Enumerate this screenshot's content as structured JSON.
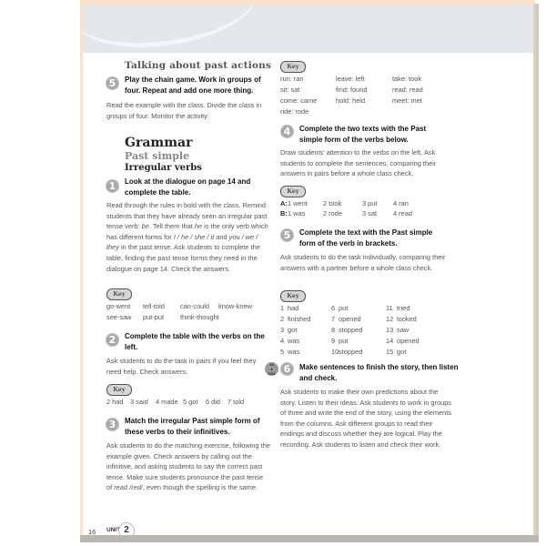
{
  "left": {
    "section_heading": "Talking about past actions",
    "ex5": {
      "number": "5",
      "task": "Play the chain game. Work in groups of four. Repeat and add one more thing.",
      "notes": "Read the example with the class. Divide the class in groups of four. Monitor the activity."
    },
    "grammar": {
      "title": "Grammar",
      "subtitle": "Past simple",
      "subheading": "Irregular verbs"
    },
    "ex1": {
      "number": "1",
      "task": "Look at the dialogue on page 14 and complete the table.",
      "notes_a": "Read through the rules in bold with the class. Remind students that they have already seen an irregular past tense verb: ",
      "notes_be": "be",
      "notes_b": ". Tell them that ",
      "notes_he": "he",
      "notes_c": " is the only verb which has different forms for ",
      "notes_forms1": "I / he / she / it",
      "notes_d": " and ",
      "notes_forms2": "you / we / they",
      "notes_e": " in the past tense. Ask students to complete the table, finding the past tense forms they need in the dialogue on page 14. Check the answers.",
      "key_label": "Key",
      "key_rows": [
        [
          "go-went",
          "tell-told",
          "can-could",
          "know-knew"
        ],
        [
          "see-saw",
          "put-put",
          "think-thought"
        ]
      ]
    },
    "ex2": {
      "number": "2",
      "task": "Complete the table with the verbs on the left.",
      "notes": "Ask students to do the task in pairs if you feel they need help. Check answers.",
      "key_label": "Key",
      "key_items": [
        "2 had",
        "3 said",
        "4 made",
        "5 got",
        "6 did",
        "7 told"
      ]
    },
    "ex3": {
      "number": "3",
      "task": "Match the irregular Past simple form of these verbs to their infinitives.",
      "notes_a": "Ask students to do the matching exercise, following the example given. Check answers by calling out the infinitive, and asking students to say the correct past tense. Make sure students pronounce the past tense of ",
      "notes_read": "read /red/",
      "notes_b": ", even though the spelling is the same."
    }
  },
  "right": {
    "key1": {
      "label": "Key",
      "rows": [
        [
          "run: ran",
          "leave: left",
          "take: took"
        ],
        [
          "sit: sat",
          "find: found",
          "read: read"
        ],
        [
          "come: came",
          "hold: held",
          "meet: met"
        ],
        [
          "ride: rode"
        ]
      ]
    },
    "ex4": {
      "number": "4",
      "task": "Complete the two texts with the Past simple form of the verbs below.",
      "notes": "Draw students' attention to the verbs on the left. Ask students to complete the sentences, comparing their answers in pairs before a whole class check.",
      "key_label": "Key",
      "key_rows": [
        {
          "label": "A:",
          "items": [
            "1 went",
            "2 took",
            "3 put",
            "4 ran"
          ]
        },
        {
          "label": "B:",
          "items": [
            "1 was",
            "2 rode",
            "3 sat",
            "4 read"
          ]
        }
      ]
    },
    "ex5": {
      "number": "5",
      "task": "Complete the text with the Past simple form of the verb in brackets.",
      "notes": "Ask students to do the task individually, comparing their answers with a partner before a whole class check.",
      "key_label": "Key",
      "key_items": [
        [
          "1",
          "had"
        ],
        [
          "2",
          "finished"
        ],
        [
          "3",
          "got"
        ],
        [
          "4",
          "was"
        ],
        [
          "5",
          "was"
        ],
        [
          "6",
          "put"
        ],
        [
          "7",
          "opened"
        ],
        [
          "8",
          "stopped"
        ],
        [
          "9",
          "put"
        ],
        [
          "10",
          "stopped"
        ],
        [
          "11",
          "tried"
        ],
        [
          "12",
          "looked"
        ],
        [
          "13",
          "saw"
        ],
        [
          "14",
          "opened"
        ],
        [
          "15",
          "got"
        ]
      ]
    },
    "ex6": {
      "number": "6",
      "cd_track": "14",
      "cd_label": "CD1",
      "task": "Make sentences to finish the story, then listen and check.",
      "notes": "Ask students to make their own predictions about the story. Listen to their ideas. Ask students to work in groups of three and write the end of the story, using the elements from the columns. Ask different groups to read their endings and discuss whether they are logical. Play the recording. Ask students to listen and check their work."
    }
  },
  "footer": {
    "page_number": "16",
    "unit_label": "UNIT",
    "unit_number": "2"
  },
  "colors": {
    "page_border": "#fbe3c8",
    "header_band": "#e6e7e8",
    "number_badge": "#a9a9a9",
    "key_badge": "#d6d6d6"
  }
}
